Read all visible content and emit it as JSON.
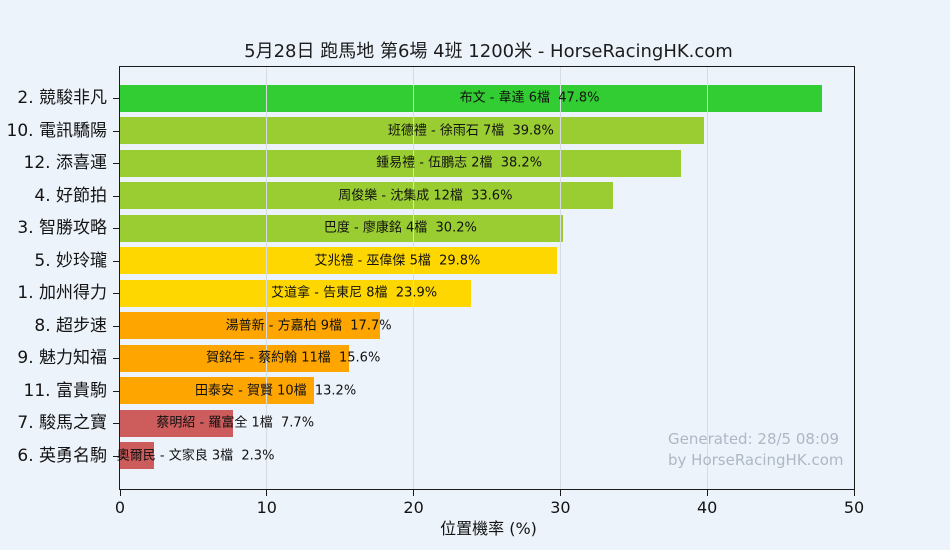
{
  "page": {
    "background_color": "#edf3fb",
    "watermark_line1": "Generated: 28/5 08:09",
    "watermark_line2": "by HorseRacingHK.com"
  },
  "chart_data": {
    "type": "bar",
    "orientation": "horizontal",
    "title": "5月28日  跑馬地  第6場  4班  1200米 - HorseRacingHK.com",
    "xlabel": "位置機率 (%)",
    "ylabel": "",
    "xlim": [
      0,
      50
    ],
    "xticks": [
      0,
      10,
      20,
      30,
      40,
      50
    ],
    "grid": true,
    "legend": false,
    "categories": [
      "2. 競駿非凡",
      "10. 電訊驕陽",
      "12. 添喜運",
      "4. 好節拍",
      "3. 智勝攻略",
      "5. 妙玲瓏",
      "1. 加州得力",
      "8. 超步速",
      "9. 魅力知福",
      "11. 富貴駒",
      "7. 駿馬之寶",
      "6. 英勇名駒"
    ],
    "values": [
      47.8,
      39.8,
      38.2,
      33.6,
      30.2,
      29.8,
      23.9,
      17.7,
      15.6,
      13.2,
      7.7,
      2.3
    ],
    "bar_labels": [
      "布文 - 韋達 6檔",
      "班德禮 - 徐雨石 7檔",
      "鍾易禮 - 伍鵬志 2檔",
      "周俊樂 - 沈集成 12檔",
      "巴度 - 廖康銘 4檔",
      "艾兆禮 - 巫偉傑 5檔",
      "艾道拿 - 告東尼 8檔",
      "湯普新 - 方嘉柏 9檔",
      "賀銘年 - 蔡約翰 11檔",
      "田泰安 - 賀賢 10檔",
      "蔡明紹 - 羅富全 1檔",
      "奧爾民 - 文家良 3檔"
    ],
    "bar_colors": [
      "#32CD32",
      "#9ACD32",
      "#9ACD32",
      "#9ACD32",
      "#9ACD32",
      "#FFD700",
      "#FFD700",
      "#FFA500",
      "#FFA500",
      "#FFA500",
      "#CD5C5C",
      "#CD5C5C"
    ]
  }
}
